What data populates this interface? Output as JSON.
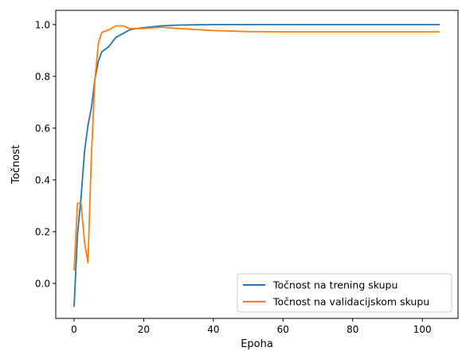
{
  "chart_data": {
    "type": "line",
    "title": "",
    "xlabel": "Epoha",
    "ylabel": "Točnost",
    "xlim": [
      -5.25,
      110.25
    ],
    "ylim": [
      -0.135,
      1.055
    ],
    "xticks": [
      0,
      20,
      40,
      60,
      80,
      100
    ],
    "yticks": [
      0.0,
      0.2,
      0.4,
      0.6,
      0.8,
      1.0
    ],
    "xtick_labels": [
      "0",
      "20",
      "40",
      "60",
      "80",
      "100"
    ],
    "ytick_labels": [
      "0.0",
      "0.2",
      "0.4",
      "0.6",
      "0.8",
      "1.0"
    ],
    "grid": false,
    "legend_position": "lower-right",
    "series": [
      {
        "name": "Točnost na trening skupu",
        "color": "#1f77b4",
        "x": [
          0,
          1,
          2,
          3,
          4,
          5,
          6,
          7,
          8,
          10,
          12,
          14,
          16,
          18,
          20,
          25,
          30,
          40,
          50,
          60,
          70,
          80,
          90,
          100,
          105
        ],
        "y": [
          -0.09,
          0.19,
          0.33,
          0.51,
          0.61,
          0.68,
          0.79,
          0.86,
          0.895,
          0.915,
          0.95,
          0.965,
          0.98,
          0.985,
          0.988,
          0.995,
          0.998,
          1.0,
          1.0,
          1.0,
          1.0,
          1.0,
          1.0,
          1.0,
          1.0
        ]
      },
      {
        "name": "Točnost na validacijskom skupu",
        "color": "#ff7f0e",
        "x": [
          0,
          1,
          2,
          3,
          4,
          5,
          6,
          7,
          8,
          10,
          12,
          14,
          15,
          16,
          18,
          20,
          25,
          30,
          40,
          50,
          60,
          70,
          80,
          90,
          100,
          105
        ],
        "y": [
          0.05,
          0.31,
          0.31,
          0.16,
          0.08,
          0.5,
          0.79,
          0.93,
          0.97,
          0.98,
          0.995,
          0.995,
          0.99,
          0.985,
          0.985,
          0.985,
          0.99,
          0.985,
          0.977,
          0.973,
          0.972,
          0.972,
          0.972,
          0.972,
          0.972,
          0.972
        ]
      }
    ]
  }
}
